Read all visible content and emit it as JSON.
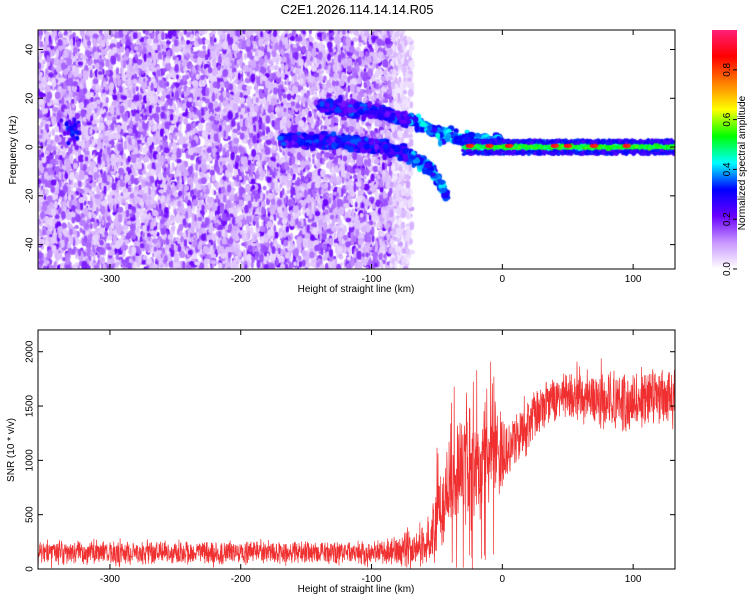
{
  "title": "C2E1.2026.114.14.14.R05",
  "chart_data": [
    {
      "type": "heatmap",
      "xlabel": "Height of straight line (km)",
      "ylabel": "Frequency (Hz)",
      "xlim": [
        -355,
        132
      ],
      "ylim": [
        -50,
        48
      ],
      "x_ticks": [
        -300,
        -200,
        -100,
        0,
        100
      ],
      "y_ticks": [
        -40,
        -20,
        0,
        20,
        40
      ],
      "colorbar": {
        "label": "Normalized spectral amplitude",
        "range": [
          0,
          0.96
        ],
        "ticks": [
          0.0,
          0.2,
          0.4,
          0.6,
          0.8
        ],
        "colors": [
          "#ffffff",
          "#c896ff",
          "#6a00ff",
          "#0000ff",
          "#00ffff",
          "#00ff00",
          "#ffff00",
          "#ff7f00",
          "#ff0000",
          "#ff1e78"
        ]
      },
      "features": {
        "noise_region_x": [
          -355,
          -75
        ],
        "noise_level": 0.15,
        "upper_branch": [
          [
            -140,
            17
          ],
          [
            -100,
            15
          ],
          [
            -70,
            11
          ],
          [
            -50,
            6
          ],
          [
            -30,
            3
          ],
          [
            0,
            2
          ]
        ],
        "lower_branch": [
          [
            -170,
            3
          ],
          [
            -120,
            2
          ],
          [
            -90,
            0
          ],
          [
            -70,
            -4
          ],
          [
            -55,
            -9
          ],
          [
            -42,
            -20
          ]
        ],
        "carrier_band_x": [
          -30,
          132
        ],
        "carrier_band_freq": [
          -2,
          2
        ],
        "carrier_amplitude": 0.55,
        "hot_spots_x": [
          -25,
          -10,
          5,
          40,
          50,
          70,
          95
        ],
        "isolated_spot": {
          "x": -330,
          "y": 7
        }
      }
    },
    {
      "type": "line",
      "xlabel": "Height of straight line (km)",
      "ylabel": "SNR (10 * v/v)",
      "xlim": [
        -355,
        132
      ],
      "ylim": [
        0,
        2200
      ],
      "x_ticks": [
        -300,
        -200,
        -100,
        0,
        100
      ],
      "y_ticks": [
        0,
        500,
        1000,
        1500,
        2000
      ],
      "color": "#f03030",
      "profile": [
        [
          -355,
          150
        ],
        [
          -300,
          150
        ],
        [
          -200,
          150
        ],
        [
          -100,
          150
        ],
        [
          -70,
          170
        ],
        [
          -55,
          280
        ],
        [
          -45,
          550
        ],
        [
          -38,
          800
        ],
        [
          -30,
          900
        ],
        [
          -20,
          1000
        ],
        [
          -10,
          1050
        ],
        [
          0,
          1100
        ],
        [
          10,
          1200
        ],
        [
          20,
          1350
        ],
        [
          30,
          1500
        ],
        [
          50,
          1600
        ],
        [
          70,
          1570
        ],
        [
          90,
          1540
        ],
        [
          110,
          1580
        ],
        [
          132,
          1600
        ]
      ],
      "spread": [
        [
          -355,
          130
        ],
        [
          -100,
          130
        ],
        [
          -60,
          250
        ],
        [
          -40,
          500
        ],
        [
          -25,
          650
        ],
        [
          -10,
          550
        ],
        [
          10,
          300
        ],
        [
          40,
          250
        ],
        [
          80,
          350
        ],
        [
          132,
          300
        ]
      ],
      "samples": 2600
    }
  ]
}
